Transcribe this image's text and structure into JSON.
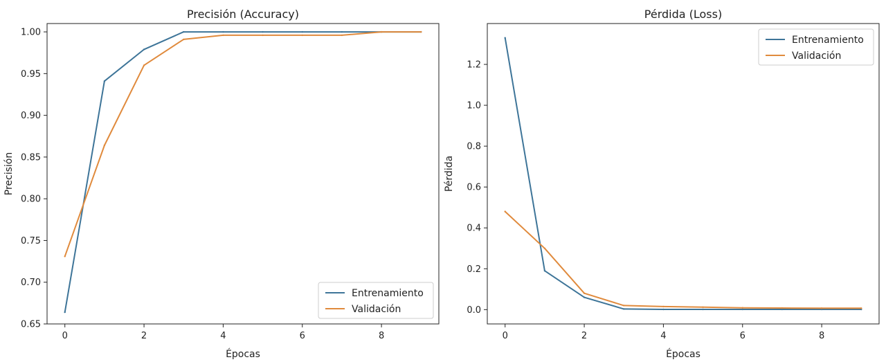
{
  "colors": {
    "train": "#3d7498",
    "val": "#e08a3c",
    "axis": "#222222",
    "legend_border": "#cccccc"
  },
  "chart_data": [
    {
      "type": "line",
      "title": "Precisión (Accuracy)",
      "xlabel": "Épocas",
      "ylabel": "Precisión",
      "xlim": [
        -0.45,
        9.45
      ],
      "ylim": [
        0.65,
        1.01
      ],
      "xticks": [
        0,
        2,
        4,
        6,
        8
      ],
      "xtick_labels": [
        "0",
        "2",
        "4",
        "6",
        "8"
      ],
      "yticks": [
        0.65,
        0.7,
        0.75,
        0.8,
        0.85,
        0.9,
        0.95,
        1.0
      ],
      "ytick_labels": [
        "0.65",
        "0.70",
        "0.75",
        "0.80",
        "0.85",
        "0.90",
        "0.95",
        "1.00"
      ],
      "grid": false,
      "legend_position": "lower-right",
      "x": [
        0,
        1,
        2,
        3,
        4,
        5,
        6,
        7,
        8,
        9
      ],
      "series": [
        {
          "name": "Entrenamiento",
          "color_key": "train",
          "values": [
            0.664,
            0.941,
            0.979,
            1.0,
            1.0,
            1.0,
            1.0,
            1.0,
            1.0,
            1.0
          ]
        },
        {
          "name": "Validación",
          "color_key": "val",
          "values": [
            0.731,
            0.864,
            0.96,
            0.991,
            0.996,
            0.996,
            0.996,
            0.996,
            1.0,
            1.0
          ]
        }
      ]
    },
    {
      "type": "line",
      "title": "Pérdida (Loss)",
      "xlabel": "Épocas",
      "ylabel": "Pérdida",
      "xlim": [
        -0.45,
        9.45
      ],
      "ylim": [
        -0.07,
        1.4
      ],
      "xticks": [
        0,
        2,
        4,
        6,
        8
      ],
      "xtick_labels": [
        "0",
        "2",
        "4",
        "6",
        "8"
      ],
      "yticks": [
        0.0,
        0.2,
        0.4,
        0.6,
        0.8,
        1.0,
        1.2
      ],
      "ytick_labels": [
        "0.0",
        "0.2",
        "0.4",
        "0.6",
        "0.8",
        "1.0",
        "1.2"
      ],
      "grid": false,
      "legend_position": "upper-right",
      "x": [
        0,
        1,
        2,
        3,
        4,
        5,
        6,
        7,
        8,
        9
      ],
      "series": [
        {
          "name": "Entrenamiento",
          "color_key": "train",
          "values": [
            1.33,
            0.19,
            0.06,
            0.003,
            0.001,
            0.001,
            0.001,
            0.001,
            0.001,
            0.001
          ]
        },
        {
          "name": "Validación",
          "color_key": "val",
          "values": [
            0.48,
            0.3,
            0.08,
            0.02,
            0.015,
            0.012,
            0.009,
            0.008,
            0.007,
            0.007
          ]
        }
      ]
    }
  ]
}
